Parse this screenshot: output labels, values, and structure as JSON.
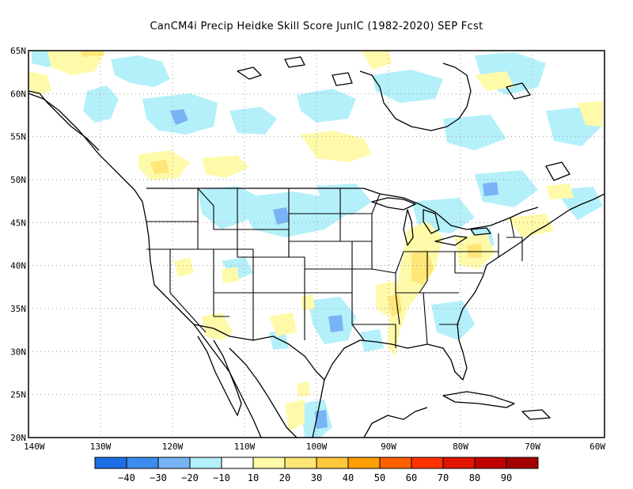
{
  "title": "CanCM4i Precip Heidke Skill Score JunIC (1982-2020) SEP Fcst",
  "map": {
    "lon_range": [
      -140,
      -60
    ],
    "lat_range": [
      20,
      65
    ],
    "lat_labels": [
      "65N",
      "60N",
      "55N",
      "50N",
      "45N",
      "40N",
      "35N",
      "30N",
      "25N",
      "20N"
    ],
    "lat_values": [
      65,
      60,
      55,
      50,
      45,
      40,
      35,
      30,
      25,
      20
    ],
    "lon_labels": [
      "140W",
      "130W",
      "120W",
      "110W",
      "100W",
      "90W",
      "80W",
      "70W",
      "60W"
    ],
    "lon_values": [
      -140,
      -130,
      -120,
      -110,
      -100,
      -90,
      -80,
      -70,
      -60
    ],
    "gridlines": "dotted"
  },
  "colorbar": {
    "colors": [
      "#1e6ee6",
      "#3c8cf0",
      "#78b4f5",
      "#b4f0fa",
      "#ffffff",
      "#fffaaa",
      "#ffe678",
      "#ffc83c",
      "#ffa000",
      "#ff6000",
      "#ff3200",
      "#e11400",
      "#c00000",
      "#a50000"
    ],
    "labels": [
      "−40",
      "−30",
      "−20",
      "−10",
      "10",
      "20",
      "30",
      "40",
      "50",
      "60",
      "70",
      "80",
      "90"
    ]
  },
  "palette": {
    "neg10": "#b4f0fa",
    "neg20": "#78b4f5",
    "neg30": "#3c8cf0",
    "pos10": "#fffaaa",
    "pos20": "#ffe678"
  }
}
